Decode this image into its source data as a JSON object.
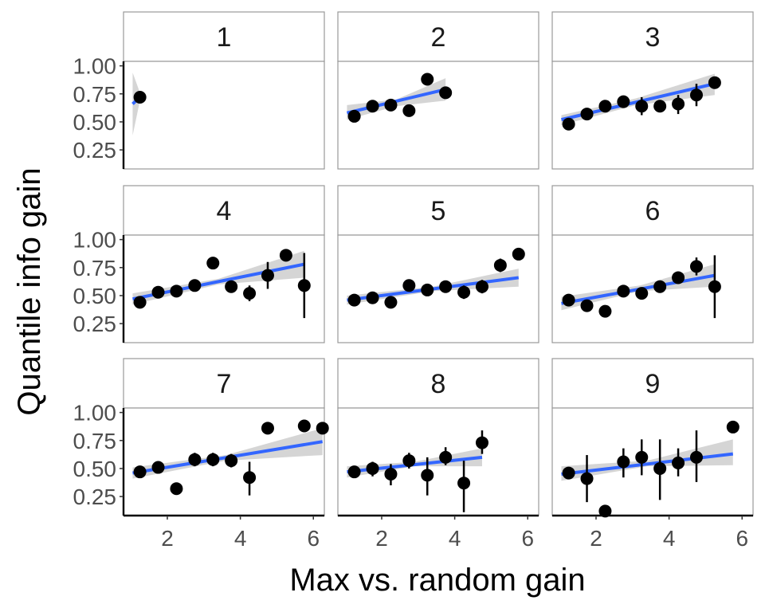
{
  "chart_data": {
    "type": "scatter",
    "xlabel": "Max vs. random gain",
    "ylabel": "Quantile info gain",
    "xlim": [
      0.8,
      6.3
    ],
    "ylim": [
      0.08,
      1.04
    ],
    "x_ticks": [
      2,
      4,
      6
    ],
    "y_ticks": [
      0.25,
      0.5,
      0.75,
      1.0
    ],
    "x_tick_labels": [
      "2",
      "4",
      "6"
    ],
    "y_tick_labels": [
      "0.25",
      "0.50",
      "0.75",
      "1.00"
    ],
    "grid": false,
    "colors": {
      "points": "#000000",
      "fit_line": "#3366FF",
      "ribbon": "#BEBEBE",
      "strip_fill": "#FFFFFF",
      "panel_border": "#999999"
    },
    "panels": [
      {
        "label": "1",
        "points": [
          {
            "x": 1.25,
            "y": 0.72,
            "lo": 0.72,
            "hi": 0.72
          }
        ],
        "fit": {
          "x0": 1.05,
          "y0": 0.66,
          "x1": 1.25,
          "y1": 0.72
        },
        "band": [
          [
            1.05,
            0.38,
            0.94
          ],
          [
            1.25,
            0.69,
            0.76
          ]
        ]
      },
      {
        "label": "2",
        "points": [
          {
            "x": 1.25,
            "y": 0.55,
            "lo": 0.55,
            "hi": 0.55
          },
          {
            "x": 1.75,
            "y": 0.64,
            "lo": 0.64,
            "hi": 0.64
          },
          {
            "x": 2.25,
            "y": 0.65,
            "lo": 0.65,
            "hi": 0.65
          },
          {
            "x": 2.75,
            "y": 0.6,
            "lo": 0.56,
            "hi": 0.64
          },
          {
            "x": 3.25,
            "y": 0.88,
            "lo": 0.88,
            "hi": 0.88
          },
          {
            "x": 3.75,
            "y": 0.76,
            "lo": 0.76,
            "hi": 0.76
          }
        ],
        "fit": {
          "x0": 1.05,
          "y0": 0.58,
          "x1": 3.75,
          "y1": 0.79
        },
        "band": [
          [
            1.05,
            0.52,
            0.65
          ],
          [
            2.4,
            0.64,
            0.7
          ],
          [
            3.75,
            0.69,
            0.89
          ]
        ]
      },
      {
        "label": "3",
        "points": [
          {
            "x": 1.25,
            "y": 0.48,
            "lo": 0.48,
            "hi": 0.48
          },
          {
            "x": 1.75,
            "y": 0.57,
            "lo": 0.57,
            "hi": 0.57
          },
          {
            "x": 2.25,
            "y": 0.64,
            "lo": 0.64,
            "hi": 0.64
          },
          {
            "x": 2.75,
            "y": 0.68,
            "lo": 0.64,
            "hi": 0.72
          },
          {
            "x": 3.25,
            "y": 0.64,
            "lo": 0.56,
            "hi": 0.72
          },
          {
            "x": 3.75,
            "y": 0.64,
            "lo": 0.59,
            "hi": 0.69
          },
          {
            "x": 4.25,
            "y": 0.66,
            "lo": 0.57,
            "hi": 0.74
          },
          {
            "x": 4.75,
            "y": 0.74,
            "lo": 0.64,
            "hi": 0.84
          },
          {
            "x": 5.25,
            "y": 0.85,
            "lo": 0.85,
            "hi": 0.85
          }
        ],
        "fit": {
          "x0": 1.05,
          "y0": 0.52,
          "x1": 5.25,
          "y1": 0.84
        },
        "band": [
          [
            1.05,
            0.47,
            0.56
          ],
          [
            3.1,
            0.65,
            0.71
          ],
          [
            5.25,
            0.74,
            0.93
          ]
        ]
      },
      {
        "label": "4",
        "points": [
          {
            "x": 1.25,
            "y": 0.44,
            "lo": 0.44,
            "hi": 0.44
          },
          {
            "x": 1.75,
            "y": 0.53,
            "lo": 0.53,
            "hi": 0.53
          },
          {
            "x": 2.25,
            "y": 0.54,
            "lo": 0.54,
            "hi": 0.54
          },
          {
            "x": 2.75,
            "y": 0.59,
            "lo": 0.59,
            "hi": 0.59
          },
          {
            "x": 3.25,
            "y": 0.79,
            "lo": 0.79,
            "hi": 0.79
          },
          {
            "x": 3.75,
            "y": 0.58,
            "lo": 0.54,
            "hi": 0.62
          },
          {
            "x": 4.25,
            "y": 0.52,
            "lo": 0.45,
            "hi": 0.59
          },
          {
            "x": 4.75,
            "y": 0.68,
            "lo": 0.56,
            "hi": 0.8
          },
          {
            "x": 5.25,
            "y": 0.86,
            "lo": 0.86,
            "hi": 0.86
          },
          {
            "x": 5.75,
            "y": 0.59,
            "lo": 0.3,
            "hi": 0.88
          }
        ],
        "fit": {
          "x0": 1.05,
          "y0": 0.47,
          "x1": 5.75,
          "y1": 0.78
        },
        "band": [
          [
            1.05,
            0.42,
            0.52
          ],
          [
            3.4,
            0.6,
            0.65
          ],
          [
            5.75,
            0.66,
            0.9
          ]
        ]
      },
      {
        "label": "5",
        "points": [
          {
            "x": 1.25,
            "y": 0.46,
            "lo": 0.46,
            "hi": 0.46
          },
          {
            "x": 1.75,
            "y": 0.48,
            "lo": 0.48,
            "hi": 0.48
          },
          {
            "x": 2.25,
            "y": 0.44,
            "lo": 0.44,
            "hi": 0.44
          },
          {
            "x": 2.75,
            "y": 0.59,
            "lo": 0.59,
            "hi": 0.59
          },
          {
            "x": 3.25,
            "y": 0.55,
            "lo": 0.55,
            "hi": 0.55
          },
          {
            "x": 3.75,
            "y": 0.58,
            "lo": 0.53,
            "hi": 0.63
          },
          {
            "x": 4.25,
            "y": 0.53,
            "lo": 0.47,
            "hi": 0.59
          },
          {
            "x": 4.75,
            "y": 0.58,
            "lo": 0.52,
            "hi": 0.64
          },
          {
            "x": 5.25,
            "y": 0.77,
            "lo": 0.71,
            "hi": 0.83
          },
          {
            "x": 5.75,
            "y": 0.87,
            "lo": 0.87,
            "hi": 0.87
          }
        ],
        "fit": {
          "x0": 1.05,
          "y0": 0.46,
          "x1": 5.75,
          "y1": 0.66
        },
        "band": [
          [
            1.05,
            0.42,
            0.5
          ],
          [
            3.4,
            0.54,
            0.58
          ],
          [
            5.75,
            0.58,
            0.74
          ]
        ]
      },
      {
        "label": "6",
        "points": [
          {
            "x": 1.25,
            "y": 0.46,
            "lo": 0.46,
            "hi": 0.46
          },
          {
            "x": 1.75,
            "y": 0.41,
            "lo": 0.41,
            "hi": 0.41
          },
          {
            "x": 2.25,
            "y": 0.36,
            "lo": 0.36,
            "hi": 0.36
          },
          {
            "x": 2.75,
            "y": 0.54,
            "lo": 0.54,
            "hi": 0.54
          },
          {
            "x": 3.25,
            "y": 0.52,
            "lo": 0.47,
            "hi": 0.57
          },
          {
            "x": 3.75,
            "y": 0.58,
            "lo": 0.53,
            "hi": 0.63
          },
          {
            "x": 4.25,
            "y": 0.66,
            "lo": 0.61,
            "hi": 0.71
          },
          {
            "x": 4.75,
            "y": 0.76,
            "lo": 0.68,
            "hi": 0.84
          },
          {
            "x": 5.25,
            "y": 0.58,
            "lo": 0.3,
            "hi": 0.86
          }
        ],
        "fit": {
          "x0": 1.05,
          "y0": 0.43,
          "x1": 5.25,
          "y1": 0.68
        },
        "band": [
          [
            1.05,
            0.37,
            0.49
          ],
          [
            3.2,
            0.54,
            0.59
          ],
          [
            5.25,
            0.58,
            0.78
          ]
        ]
      },
      {
        "label": "7",
        "points": [
          {
            "x": 1.25,
            "y": 0.47,
            "lo": 0.47,
            "hi": 0.47
          },
          {
            "x": 1.75,
            "y": 0.51,
            "lo": 0.51,
            "hi": 0.51
          },
          {
            "x": 2.25,
            "y": 0.32,
            "lo": 0.32,
            "hi": 0.32
          },
          {
            "x": 2.75,
            "y": 0.58,
            "lo": 0.52,
            "hi": 0.64
          },
          {
            "x": 3.25,
            "y": 0.58,
            "lo": 0.52,
            "hi": 0.64
          },
          {
            "x": 3.75,
            "y": 0.57,
            "lo": 0.51,
            "hi": 0.63
          },
          {
            "x": 4.25,
            "y": 0.42,
            "lo": 0.26,
            "hi": 0.56
          },
          {
            "x": 4.75,
            "y": 0.86,
            "lo": 0.86,
            "hi": 0.86
          },
          {
            "x": 5.75,
            "y": 0.88,
            "lo": 0.88,
            "hi": 0.88
          },
          {
            "x": 6.25,
            "y": 0.86,
            "lo": 0.86,
            "hi": 0.86
          }
        ],
        "fit": {
          "x0": 1.05,
          "y0": 0.46,
          "x1": 6.25,
          "y1": 0.74
        },
        "band": [
          [
            1.05,
            0.41,
            0.51
          ],
          [
            3.6,
            0.57,
            0.62
          ],
          [
            6.25,
            0.62,
            0.86
          ]
        ]
      },
      {
        "label": "8",
        "points": [
          {
            "x": 1.25,
            "y": 0.47,
            "lo": 0.47,
            "hi": 0.47
          },
          {
            "x": 1.75,
            "y": 0.5,
            "lo": 0.43,
            "hi": 0.56
          },
          {
            "x": 2.25,
            "y": 0.45,
            "lo": 0.35,
            "hi": 0.54
          },
          {
            "x": 2.75,
            "y": 0.57,
            "lo": 0.5,
            "hi": 0.64
          },
          {
            "x": 3.25,
            "y": 0.44,
            "lo": 0.26,
            "hi": 0.6
          },
          {
            "x": 3.75,
            "y": 0.6,
            "lo": 0.53,
            "hi": 0.69
          },
          {
            "x": 4.25,
            "y": 0.37,
            "lo": 0.11,
            "hi": 0.57
          },
          {
            "x": 4.75,
            "y": 0.73,
            "lo": 0.63,
            "hi": 0.84
          }
        ],
        "fit": {
          "x0": 1.05,
          "y0": 0.47,
          "x1": 4.75,
          "y1": 0.6
        },
        "band": [
          [
            1.05,
            0.42,
            0.52
          ],
          [
            2.9,
            0.52,
            0.56
          ],
          [
            4.75,
            0.52,
            0.68
          ]
        ]
      },
      {
        "label": "9",
        "points": [
          {
            "x": 1.25,
            "y": 0.46,
            "lo": 0.46,
            "hi": 0.46
          },
          {
            "x": 1.75,
            "y": 0.41,
            "lo": 0.2,
            "hi": 0.62
          },
          {
            "x": 2.25,
            "y": 0.12,
            "lo": 0.12,
            "hi": 0.12
          },
          {
            "x": 2.75,
            "y": 0.56,
            "lo": 0.42,
            "hi": 0.68
          },
          {
            "x": 3.25,
            "y": 0.6,
            "lo": 0.44,
            "hi": 0.76
          },
          {
            "x": 3.75,
            "y": 0.5,
            "lo": 0.22,
            "hi": 0.76
          },
          {
            "x": 4.25,
            "y": 0.55,
            "lo": 0.43,
            "hi": 0.68
          },
          {
            "x": 4.75,
            "y": 0.6,
            "lo": 0.38,
            "hi": 0.84
          },
          {
            "x": 5.75,
            "y": 0.87,
            "lo": 0.87,
            "hi": 0.87
          }
        ],
        "fit": {
          "x0": 1.05,
          "y0": 0.45,
          "x1": 5.75,
          "y1": 0.63
        },
        "band": [
          [
            1.05,
            0.39,
            0.52
          ],
          [
            3.4,
            0.52,
            0.57
          ],
          [
            5.75,
            0.53,
            0.76
          ]
        ]
      }
    ]
  }
}
